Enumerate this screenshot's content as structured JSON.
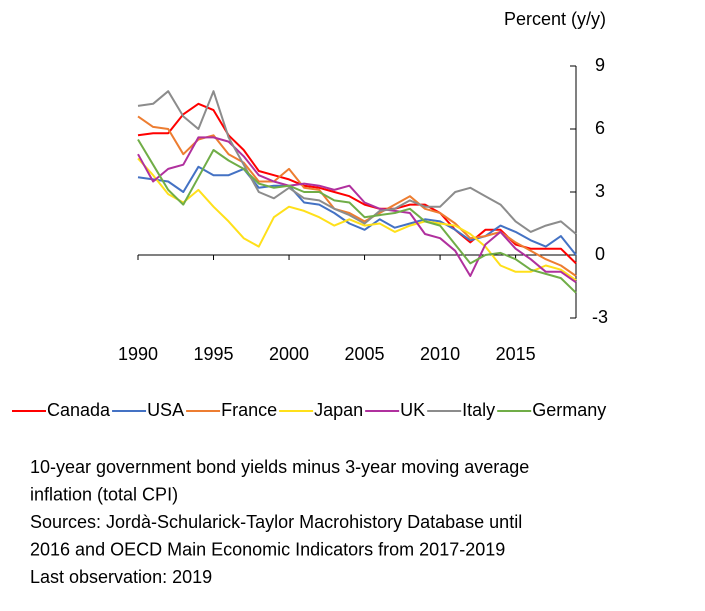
{
  "chart_data": {
    "type": "line",
    "y_axis_label": "Percent (y/y)",
    "x": [
      1990,
      1991,
      1992,
      1993,
      1994,
      1995,
      1996,
      1997,
      1998,
      1999,
      2000,
      2001,
      2002,
      2003,
      2004,
      2005,
      2006,
      2007,
      2008,
      2009,
      2010,
      2011,
      2012,
      2013,
      2014,
      2015,
      2016,
      2017,
      2018,
      2019
    ],
    "xlim": [
      1990,
      2019
    ],
    "xticks": [
      1990,
      1995,
      2000,
      2005,
      2010,
      2015
    ],
    "ylim": [
      -3,
      9
    ],
    "yticks": [
      -3,
      0,
      3,
      6,
      9
    ],
    "y_axis_side": "right",
    "legend_position": "bottom",
    "series": [
      {
        "name": "Canada",
        "color": "#ff0000",
        "values": [
          5.7,
          5.8,
          5.8,
          6.7,
          7.2,
          6.9,
          5.7,
          5.0,
          4.0,
          3.8,
          3.6,
          3.3,
          3.2,
          3.0,
          2.8,
          2.4,
          2.2,
          2.2,
          2.4,
          2.4,
          2.0,
          1.2,
          0.6,
          1.2,
          1.2,
          0.5,
          0.3,
          0.3,
          0.3,
          -0.4
        ]
      },
      {
        "name": "USA",
        "color": "#4472c4",
        "values": [
          3.7,
          3.6,
          3.5,
          3.0,
          4.2,
          3.8,
          3.8,
          4.1,
          3.2,
          3.3,
          3.3,
          2.5,
          2.4,
          2.0,
          1.5,
          1.2,
          1.7,
          1.3,
          1.5,
          1.7,
          1.6,
          1.2,
          0.7,
          0.9,
          1.4,
          1.1,
          0.7,
          0.4,
          0.9,
          0.0
        ]
      },
      {
        "name": "France",
        "color": "#ed7d31",
        "values": [
          6.6,
          6.1,
          6.0,
          4.8,
          5.5,
          5.7,
          4.8,
          4.4,
          3.5,
          3.5,
          4.1,
          3.2,
          3.1,
          2.2,
          2.0,
          1.6,
          2.0,
          2.4,
          2.8,
          2.2,
          2.0,
          1.5,
          0.8,
          0.9,
          1.1,
          0.6,
          0.2,
          -0.2,
          -0.5,
          -1.0
        ]
      },
      {
        "name": "Japan",
        "color": "#ffe01a",
        "values": [
          4.6,
          3.8,
          2.9,
          2.5,
          3.1,
          2.3,
          1.6,
          0.8,
          0.4,
          1.8,
          2.3,
          2.1,
          1.8,
          1.4,
          1.7,
          1.4,
          1.5,
          1.1,
          1.4,
          1.6,
          1.5,
          1.4,
          1.0,
          0.4,
          -0.5,
          -0.8,
          -0.8,
          -0.5,
          -0.7,
          -1.2
        ]
      },
      {
        "name": "UK",
        "color": "#b0309e",
        "values": [
          4.8,
          3.5,
          4.1,
          4.3,
          5.6,
          5.6,
          5.4,
          4.7,
          3.8,
          3.5,
          3.3,
          3.4,
          3.3,
          3.1,
          3.3,
          2.5,
          2.2,
          2.1,
          2.0,
          1.0,
          0.8,
          0.2,
          -1.0,
          0.5,
          1.1,
          0.3,
          -0.2,
          -0.8,
          -0.8,
          -1.3
        ]
      },
      {
        "name": "Italy",
        "color": "#8c8c8c",
        "values": [
          7.1,
          7.2,
          7.8,
          6.6,
          6.0,
          7.8,
          5.6,
          4.3,
          3.0,
          2.7,
          3.2,
          2.7,
          2.6,
          2.2,
          1.9,
          1.5,
          2.1,
          2.2,
          2.6,
          2.3,
          2.3,
          3.0,
          3.2,
          2.8,
          2.4,
          1.6,
          1.1,
          1.4,
          1.6,
          1.0
        ]
      },
      {
        "name": "Germany",
        "color": "#70ad47",
        "values": [
          5.5,
          4.3,
          3.1,
          2.4,
          3.7,
          5.0,
          4.5,
          4.1,
          3.4,
          3.2,
          3.3,
          3.0,
          3.0,
          2.6,
          2.5,
          1.8,
          1.9,
          2.0,
          2.2,
          1.6,
          1.4,
          0.5,
          -0.4,
          0.0,
          0.1,
          -0.2,
          -0.7,
          -0.9,
          -1.1,
          -1.8
        ]
      }
    ],
    "notes": [
      "10-year government bond yields minus 3-year moving average",
      "inflation (total CPI)",
      "Sources: Jordà-Schularick-Taylor Macrohistory Database until",
      "2016 and OECD Main Economic Indicators from 2017-2019",
      "Last observation: 2019"
    ]
  }
}
